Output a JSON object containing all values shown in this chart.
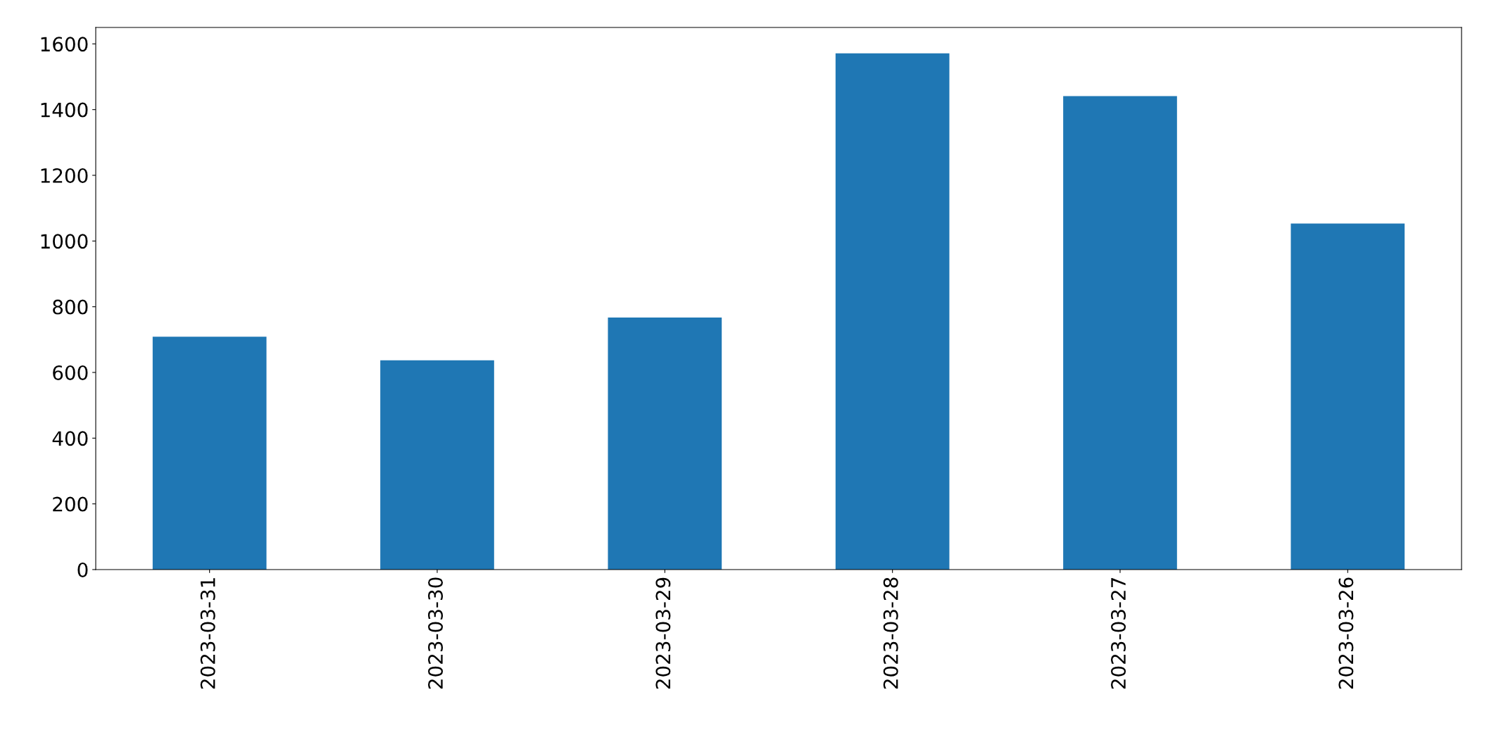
{
  "chart_data": {
    "type": "bar",
    "categories": [
      "2023-03-31",
      "2023-03-30",
      "2023-03-29",
      "2023-03-28",
      "2023-03-27",
      "2023-03-26"
    ],
    "values": [
      709,
      637,
      767,
      1571,
      1441,
      1053
    ],
    "color": "#1f77b4",
    "ylim": [
      0,
      1650
    ],
    "yticks": [
      0,
      200,
      400,
      600,
      800,
      1000,
      1200,
      1400,
      1600
    ],
    "grid": false,
    "legend": false
  }
}
